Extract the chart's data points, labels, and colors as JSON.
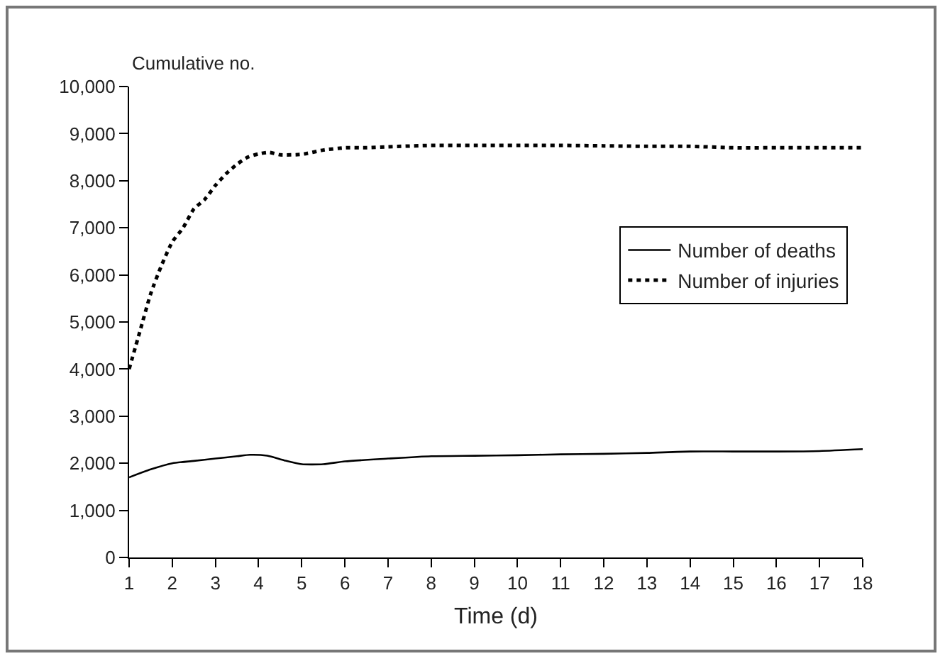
{
  "chart_data": {
    "type": "line",
    "ylabel": "Cumulative no.",
    "xlabel": "Time (d)",
    "xlim": [
      1,
      18
    ],
    "xticks": [
      1,
      2,
      3,
      4,
      5,
      6,
      7,
      8,
      9,
      10,
      11,
      12,
      13,
      14,
      15,
      16,
      17,
      18
    ],
    "ylim": [
      0,
      10000
    ],
    "yticks": [
      {
        "value": 0,
        "label": "0"
      },
      {
        "value": 1000,
        "label": "1,000"
      },
      {
        "value": 2000,
        "label": "2,000"
      },
      {
        "value": 3000,
        "label": "3,000"
      },
      {
        "value": 4000,
        "label": "4,000"
      },
      {
        "value": 5000,
        "label": "5,000"
      },
      {
        "value": 6000,
        "label": "6,000"
      },
      {
        "value": 7000,
        "label": "7,000"
      },
      {
        "value": 8000,
        "label": "8,000"
      },
      {
        "value": 9000,
        "label": "9,000"
      },
      {
        "value": 10000,
        "label": "10,000"
      }
    ],
    "grid": false,
    "legend": "right",
    "marker": "none",
    "series": [
      {
        "name": "Number of deaths",
        "color": "#000000",
        "line_style": "solid",
        "x": [
          1,
          1.5,
          2,
          2.5,
          3,
          3.5,
          3.8,
          4.2,
          4.6,
          5,
          5.5,
          6,
          7,
          8,
          9,
          10,
          11,
          12,
          13,
          14,
          15,
          16,
          17,
          18
        ],
        "values": [
          1700,
          1870,
          2000,
          2050,
          2100,
          2150,
          2180,
          2160,
          2060,
          1980,
          1980,
          2040,
          2100,
          2150,
          2160,
          2170,
          2190,
          2200,
          2220,
          2250,
          2250,
          2250,
          2260,
          2300
        ]
      },
      {
        "name": "Number of injuries",
        "color": "#000000",
        "line_style": "dotted",
        "x": [
          1,
          1.25,
          1.5,
          1.75,
          2,
          2.25,
          2.5,
          2.75,
          3,
          3.25,
          3.5,
          3.75,
          4,
          4.25,
          4.5,
          5,
          5.5,
          6,
          6.5,
          7,
          8,
          9,
          10,
          11,
          12,
          13,
          14,
          15,
          16,
          17,
          18
        ],
        "values": [
          4000,
          4800,
          5600,
          6200,
          6700,
          7000,
          7400,
          7600,
          7900,
          8150,
          8350,
          8500,
          8570,
          8600,
          8550,
          8560,
          8650,
          8700,
          8700,
          8720,
          8750,
          8750,
          8750,
          8750,
          8740,
          8730,
          8730,
          8700,
          8700,
          8700,
          8700
        ]
      }
    ]
  }
}
